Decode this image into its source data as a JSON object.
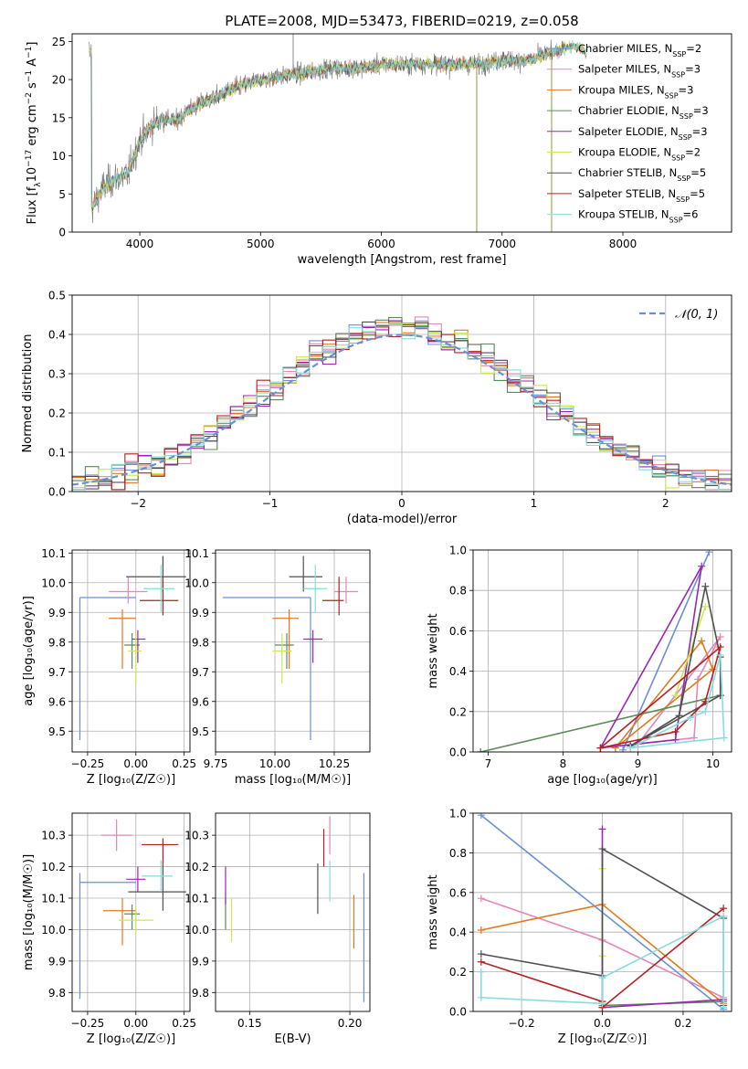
{
  "colors": {
    "Chabrier MILES": "#6a8fd8",
    "Salpeter MILES": "#e586b4",
    "Kroupa MILES": "#e07a1e",
    "Chabrier ELODIE": "#5a8a5a",
    "Salpeter ELODIE": "#9b27b0",
    "Kroupa ELODIE": "#cde84a",
    "Chabrier STELIB": "#505050",
    "Salpeter STELIB": "#b22222",
    "Kroupa STELIB": "#86dcdc",
    "data": "#7f7f7f",
    "normal": "#6a8fd8"
  },
  "chart_data": [
    {
      "id": "spectrum",
      "type": "line",
      "title": "PLATE=2008, MJD=53473, FIBERID=0219, z=0.058",
      "xlabel": "wavelength [Angstrom, rest frame]",
      "ylabel": "Flux [f",
      "ylabel_parts": [
        "Flux [f",
        "λ",
        "10",
        "−17",
        " erg cm",
        "−2",
        " s",
        "−1",
        " A",
        "−1",
        "]"
      ],
      "xlim": [
        3440,
        8900
      ],
      "ylim": [
        0,
        26
      ],
      "xticks": [
        4000,
        5000,
        6000,
        7000,
        8000
      ],
      "yticks": [
        0,
        5,
        10,
        15,
        20,
        25
      ],
      "continuum": {
        "x": [
          3600,
          3700,
          3800,
          3900,
          3950,
          4000,
          4100,
          4200,
          4300,
          4400,
          4600,
          4800,
          5000,
          5200,
          5400,
          5600,
          5800,
          6000,
          6200,
          6400,
          6600,
          6800,
          7000,
          7200,
          7400,
          7500,
          7600,
          7700
        ],
        "y": [
          3,
          6,
          7,
          7.5,
          10,
          12,
          14,
          15,
          14.5,
          16,
          17.5,
          19,
          20,
          20.5,
          21,
          21.5,
          21.5,
          22,
          22,
          22,
          22,
          22,
          22.5,
          22.5,
          23.5,
          24,
          24.5,
          23.5
        ]
      },
      "data_range": [
        3580,
        7410
      ],
      "model_range": [
        3580,
        7700
      ],
      "spikes": [
        {
          "x": 5270,
          "y": 26
        },
        {
          "x": 6790,
          "y": 0
        },
        {
          "x": 7410,
          "y": 0
        }
      ],
      "legend_position": "right",
      "legend": [
        {
          "label": "Chabrier MILES, N",
          "sub": "SSP",
          "suffix": "=2",
          "key": "Chabrier MILES"
        },
        {
          "label": "Salpeter MILES, N",
          "sub": "SSP",
          "suffix": "=3",
          "key": "Salpeter MILES"
        },
        {
          "label": "Kroupa MILES, N",
          "sub": "SSP",
          "suffix": "=3",
          "key": "Kroupa MILES"
        },
        {
          "label": "Chabrier ELODIE, N",
          "sub": "SSP",
          "suffix": "=3",
          "key": "Chabrier ELODIE"
        },
        {
          "label": "Salpeter ELODIE, N",
          "sub": "SSP",
          "suffix": "=3",
          "key": "Salpeter ELODIE"
        },
        {
          "label": "Kroupa ELODIE, N",
          "sub": "SSP",
          "suffix": "=2",
          "key": "Kroupa ELODIE"
        },
        {
          "label": "Chabrier STELIB, N",
          "sub": "SSP",
          "suffix": "=5",
          "key": "Chabrier STELIB"
        },
        {
          "label": "Salpeter STELIB, N",
          "sub": "SSP",
          "suffix": "=5",
          "key": "Salpeter STELIB"
        },
        {
          "label": "Kroupa STELIB, N",
          "sub": "SSP",
          "suffix": "=6",
          "key": "Kroupa STELIB"
        }
      ]
    },
    {
      "id": "residuals",
      "type": "histogram",
      "xlabel": "(data-model)/error",
      "ylabel": "Normed distribution",
      "xlim": [
        -2.5,
        2.5
      ],
      "ylim": [
        0,
        0.5
      ],
      "xticks": [
        -2,
        -1,
        0,
        1,
        2
      ],
      "xtick_labels": [
        "−2",
        "−1",
        "0",
        "1",
        "2"
      ],
      "yticks": [
        0,
        0.1,
        0.2,
        0.3,
        0.4,
        0.5
      ],
      "ytick_labels": [
        "0.0",
        "0.1",
        "0.2",
        "0.3",
        "0.4",
        "0.5"
      ],
      "bin_width": 0.1,
      "legend_position": "upper right",
      "legend": [
        {
          "label": "𝒩(0, 1)",
          "key": "normal",
          "style": "dashed"
        }
      ]
    },
    {
      "id": "age-vs-Z",
      "type": "errorbar",
      "xlabel": "Z [log₁₀(Z/Z☉)]",
      "ylabel": "age  [log₁₀(age/yr)]",
      "xlim": [
        -0.33,
        0.28
      ],
      "ylim": [
        9.43,
        10.11
      ],
      "xticks": [
        -0.25,
        0,
        0.25
      ],
      "xtick_labels": [
        "−0.25",
        "0.00",
        "0.25"
      ],
      "yticks": [
        9.5,
        9.6,
        9.7,
        9.8,
        9.9,
        10.0,
        10.1
      ],
      "ytick_labels": [
        "9.5",
        "9.6",
        "9.7",
        "9.8",
        "9.9",
        "10.0",
        "10.1"
      ],
      "points": [
        {
          "key": "Chabrier MILES",
          "x": -0.29,
          "xl": -0.29,
          "xh": 0.0,
          "y": 9.95,
          "yl": 9.47,
          "yh": 9.95
        },
        {
          "key": "Salpeter MILES",
          "x": -0.04,
          "xl": -0.14,
          "xh": 0.06,
          "y": 9.97,
          "yl": 9.93,
          "yh": 10.02
        },
        {
          "key": "Kroupa MILES",
          "x": -0.07,
          "xl": -0.14,
          "xh": 0.0,
          "y": 9.88,
          "yl": 9.71,
          "yh": 9.91
        },
        {
          "key": "Chabrier ELODIE",
          "x": -0.02,
          "xl": -0.06,
          "xh": 0.02,
          "y": 9.79,
          "yl": 9.71,
          "yh": 9.83
        },
        {
          "key": "Salpeter ELODIE",
          "x": 0.01,
          "xl": -0.02,
          "xh": 0.05,
          "y": 9.81,
          "yl": 9.73,
          "yh": 9.84
        },
        {
          "key": "Kroupa ELODIE",
          "x": 0.0,
          "xl": -0.04,
          "xh": 0.03,
          "y": 9.77,
          "yl": 9.66,
          "yh": 9.83
        },
        {
          "key": "Chabrier STELIB",
          "x": 0.14,
          "xl": -0.05,
          "xh": 0.26,
          "y": 10.02,
          "yl": 9.97,
          "yh": 10.09
        },
        {
          "key": "Salpeter STELIB",
          "x": 0.14,
          "xl": 0.02,
          "xh": 0.22,
          "y": 9.94,
          "yl": 9.89,
          "yh": 10.02
        },
        {
          "key": "Kroupa STELIB",
          "x": 0.13,
          "xl": 0.04,
          "xh": 0.2,
          "y": 9.98,
          "yl": 9.9,
          "yh": 10.06
        }
      ]
    },
    {
      "id": "age-vs-mass",
      "type": "errorbar",
      "xlabel": "mass [log₁₀(M/M☉)]",
      "ylabel": "",
      "xlim": [
        9.75,
        10.4
      ],
      "ylim": [
        9.43,
        10.11
      ],
      "xticks": [
        9.75,
        10.0,
        10.25
      ],
      "xtick_labels": [
        "9.75",
        "10.00",
        "10.25"
      ],
      "yticks": [
        9.5,
        9.6,
        9.7,
        9.8,
        9.9,
        10.0,
        10.1
      ],
      "ytick_labels": [
        "9.5",
        "9.6",
        "9.7",
        "9.8",
        "9.9",
        "10.0",
        "10.1"
      ],
      "points": [
        {
          "key": "Chabrier MILES",
          "x": 10.15,
          "xl": 9.78,
          "xh": 10.15,
          "y": 9.95,
          "yl": 9.47,
          "yh": 9.95
        },
        {
          "key": "Salpeter MILES",
          "x": 10.3,
          "xl": 10.25,
          "xh": 10.35,
          "y": 9.97,
          "yl": 9.93,
          "yh": 10.02
        },
        {
          "key": "Kroupa MILES",
          "x": 10.06,
          "xl": 9.99,
          "xh": 10.1,
          "y": 9.88,
          "yl": 9.71,
          "yh": 9.91
        },
        {
          "key": "Chabrier ELODIE",
          "x": 10.05,
          "xl": 10.0,
          "xh": 10.08,
          "y": 9.79,
          "yl": 9.71,
          "yh": 9.83
        },
        {
          "key": "Salpeter ELODIE",
          "x": 10.16,
          "xl": 10.12,
          "xh": 10.2,
          "y": 9.81,
          "yl": 9.73,
          "yh": 9.84
        },
        {
          "key": "Kroupa ELODIE",
          "x": 10.03,
          "xl": 9.99,
          "xh": 10.07,
          "y": 9.77,
          "yl": 9.66,
          "yh": 9.83
        },
        {
          "key": "Chabrier STELIB",
          "x": 10.12,
          "xl": 10.06,
          "xh": 10.2,
          "y": 10.02,
          "yl": 9.97,
          "yh": 10.09
        },
        {
          "key": "Salpeter STELIB",
          "x": 10.27,
          "xl": 10.2,
          "xh": 10.29,
          "y": 9.94,
          "yl": 9.89,
          "yh": 10.02
        },
        {
          "key": "Kroupa STELIB",
          "x": 10.17,
          "xl": 10.12,
          "xh": 10.22,
          "y": 9.98,
          "yl": 9.9,
          "yh": 10.06
        }
      ]
    },
    {
      "id": "massweight-vs-age",
      "type": "line",
      "xlabel": "age  [log₁₀(age/yr)]",
      "ylabel": "mass weight",
      "xlim": [
        6.8,
        10.25
      ],
      "ylim": [
        0,
        1
      ],
      "xticks": [
        7,
        8,
        9,
        10
      ],
      "xtick_labels": [
        "7",
        "8",
        "9",
        "10"
      ],
      "yticks": [
        0,
        0.2,
        0.4,
        0.6,
        0.8,
        1.0
      ],
      "ytick_labels": [
        "0.0",
        "0.2",
        "0.4",
        "0.6",
        "0.8",
        "1.0"
      ],
      "series": [
        {
          "key": "Chabrier MILES",
          "x": [
            8.8,
            9.95
          ],
          "y": [
            0.01,
            0.99
          ]
        },
        {
          "key": "Salpeter MILES",
          "x": [
            9.0,
            9.75,
            9.8,
            10.1,
            9.0
          ],
          "y": [
            0.04,
            0.07,
            0.36,
            0.57,
            0.04
          ]
        },
        {
          "key": "Kroupa MILES",
          "x": [
            8.7,
            9.85,
            10.0,
            8.7
          ],
          "y": [
            0.02,
            0.55,
            0.41,
            0.02
          ]
        },
        {
          "key": "Chabrier ELODIE",
          "x": [
            6.9,
            10.1,
            6.9
          ],
          "y": [
            0.0,
            0.28,
            0.0
          ]
        },
        {
          "key": "Salpeter ELODIE",
          "x": [
            8.5,
            9.85,
            9.5,
            8.5
          ],
          "y": [
            0.02,
            0.92,
            0.06,
            0.02
          ]
        },
        {
          "key": "Kroupa ELODIE",
          "x": [
            9.5,
            9.9,
            9.5
          ],
          "y": [
            0.28,
            0.72,
            0.28
          ]
        },
        {
          "key": "Chabrier STELIB",
          "x": [
            8.9,
            9.55,
            9.9,
            10.1,
            10.1,
            8.9
          ],
          "y": [
            0.03,
            0.18,
            0.82,
            0.47,
            0.28,
            0.03
          ]
        },
        {
          "key": "Salpeter STELIB",
          "x": [
            8.5,
            9.5,
            9.9,
            10.1,
            8.5
          ],
          "y": [
            0.02,
            0.1,
            0.25,
            0.52,
            0.02
          ]
        },
        {
          "key": "Kroupa STELIB",
          "x": [
            8.9,
            9.7,
            9.9,
            10.1,
            10.15,
            8.9
          ],
          "y": [
            0.02,
            0.17,
            0.2,
            0.48,
            0.07,
            0.02
          ]
        }
      ]
    },
    {
      "id": "mass-vs-Z",
      "type": "errorbar",
      "xlabel": "Z [log₁₀(Z/Z☉)]",
      "ylabel": "mass [log₁₀(M/M☉)]",
      "xlim": [
        -0.33,
        0.28
      ],
      "ylim": [
        9.74,
        10.37
      ],
      "xticks": [
        -0.25,
        0,
        0.25
      ],
      "xtick_labels": [
        "−0.25",
        "0.00",
        "0.25"
      ],
      "yticks": [
        9.8,
        9.9,
        10.0,
        10.1,
        10.2,
        10.3
      ],
      "ytick_labels": [
        "9.8",
        "9.9",
        "10.0",
        "10.1",
        "10.2",
        "10.3"
      ],
      "points": [
        {
          "key": "Chabrier MILES",
          "x": -0.29,
          "xl": -0.29,
          "xh": 0.0,
          "y": 10.15,
          "yl": 9.78,
          "yh": 10.18
        },
        {
          "key": "Salpeter MILES",
          "x": -0.1,
          "xl": -0.18,
          "xh": -0.02,
          "y": 10.3,
          "yl": 10.25,
          "yh": 10.35
        },
        {
          "key": "Kroupa MILES",
          "x": -0.07,
          "xl": -0.17,
          "xh": 0.0,
          "y": 10.06,
          "yl": 9.95,
          "yh": 10.1
        },
        {
          "key": "Chabrier ELODIE",
          "x": -0.02,
          "xl": -0.06,
          "xh": 0.02,
          "y": 10.05,
          "yl": 10.0,
          "yh": 10.08
        },
        {
          "key": "Salpeter ELODIE",
          "x": 0.01,
          "xl": -0.05,
          "xh": 0.05,
          "y": 10.16,
          "yl": 10.12,
          "yh": 10.2
        },
        {
          "key": "Kroupa ELODIE",
          "x": 0.0,
          "xl": -0.09,
          "xh": 0.09,
          "y": 10.03,
          "yl": 9.99,
          "yh": 10.07
        },
        {
          "key": "Chabrier STELIB",
          "x": 0.14,
          "xl": -0.04,
          "xh": 0.26,
          "y": 10.12,
          "yl": 10.06,
          "yh": 10.2
        },
        {
          "key": "Salpeter STELIB",
          "x": 0.14,
          "xl": 0.03,
          "xh": 0.22,
          "y": 10.27,
          "yl": 10.2,
          "yh": 10.29
        },
        {
          "key": "Kroupa STELIB",
          "x": 0.13,
          "xl": 0.03,
          "xh": 0.19,
          "y": 10.17,
          "yl": 10.12,
          "yh": 10.22
        }
      ]
    },
    {
      "id": "mass-vs-EBV",
      "type": "errorbar",
      "xlabel": "E(B-V)",
      "ylabel": "",
      "xlim": [
        0.133,
        0.21
      ],
      "ylim": [
        9.74,
        10.37
      ],
      "xticks": [
        0.15,
        0.2
      ],
      "xtick_labels": [
        "0.15",
        "0.20"
      ],
      "yticks": [
        9.8,
        9.9,
        10.0,
        10.1,
        10.2,
        10.3
      ],
      "ytick_labels": [
        "9.8",
        "9.9",
        "10.0",
        "10.1",
        "10.2",
        "10.3"
      ],
      "points": [
        {
          "key": "Chabrier MILES",
          "x": 0.207,
          "y": 10.15,
          "yl": 9.77,
          "yh": 10.18
        },
        {
          "key": "Salpeter MILES",
          "x": 0.19,
          "y": 10.3,
          "yl": 10.24,
          "yh": 10.36
        },
        {
          "key": "Kroupa MILES",
          "x": 0.202,
          "y": 10.04,
          "yl": 9.94,
          "yh": 10.11
        },
        {
          "key": "Chabrier ELODIE",
          "x": 0.138,
          "y": 10.05,
          "yl": 10.0,
          "yh": 10.1
        },
        {
          "key": "Salpeter ELODIE",
          "x": 0.138,
          "y": 10.16,
          "yl": 10.08,
          "yh": 10.2
        },
        {
          "key": "Kroupa ELODIE",
          "x": 0.141,
          "y": 10.03,
          "yl": 9.96,
          "yh": 10.1
        },
        {
          "key": "Chabrier STELIB",
          "x": 0.184,
          "y": 10.12,
          "yl": 10.05,
          "yh": 10.21
        },
        {
          "key": "Salpeter STELIB",
          "x": 0.187,
          "y": 10.27,
          "yl": 10.2,
          "yh": 10.32
        },
        {
          "key": "Kroupa STELIB",
          "x": 0.19,
          "y": 10.17,
          "yl": 10.09,
          "yh": 10.22
        }
      ]
    },
    {
      "id": "massweight-vs-Z",
      "type": "line",
      "xlabel": "Z [log₁₀(Z/Z☉)]",
      "ylabel": "mass weight",
      "xlim": [
        -0.32,
        0.32
      ],
      "ylim": [
        0,
        1
      ],
      "xticks": [
        -0.2,
        0,
        0.2
      ],
      "xtick_labels": [
        "−0.2",
        "0.0",
        "0.2"
      ],
      "yticks": [
        0,
        0.2,
        0.4,
        0.6,
        0.8,
        1.0
      ],
      "ytick_labels": [
        "0.0",
        "0.2",
        "0.4",
        "0.6",
        "0.8",
        "1.0"
      ],
      "series": [
        {
          "key": "Chabrier MILES",
          "x": [
            -0.3,
            0.3
          ],
          "y": [
            0.99,
            0.01
          ]
        },
        {
          "key": "Salpeter MILES",
          "x": [
            -0.3,
            0.0,
            0.3
          ],
          "y": [
            0.57,
            0.36,
            0.07
          ]
        },
        {
          "key": "Kroupa MILES",
          "x": [
            -0.3,
            0.0,
            0.3
          ],
          "y": [
            0.41,
            0.54,
            0.04
          ]
        },
        {
          "key": "Chabrier ELODIE",
          "x": [
            0.0,
            0.3
          ],
          "y": [
            0.03,
            0.05
          ]
        },
        {
          "key": "Salpeter ELODIE",
          "x": [
            0.0,
            0.0,
            0.3
          ],
          "y": [
            0.92,
            0.02,
            0.06
          ]
        },
        {
          "key": "Kroupa ELODIE",
          "x": [
            0.0,
            0.0
          ],
          "y": [
            0.72,
            0.28
          ]
        },
        {
          "key": "Chabrier STELIB",
          "x": [
            -0.3,
            0.0,
            0.0,
            0.3,
            0.3
          ],
          "y": [
            0.29,
            0.18,
            0.82,
            0.47,
            0.03
          ]
        },
        {
          "key": "Salpeter STELIB",
          "x": [
            -0.3,
            0.0,
            0.0,
            0.3
          ],
          "y": [
            0.25,
            0.05,
            0.02,
            0.52
          ]
        },
        {
          "key": "Kroupa STELIB",
          "x": [
            -0.3,
            -0.3,
            0.0,
            0.0,
            0.3,
            0.3
          ],
          "y": [
            0.2,
            0.07,
            0.04,
            0.17,
            0.48,
            0.02
          ]
        }
      ]
    }
  ]
}
